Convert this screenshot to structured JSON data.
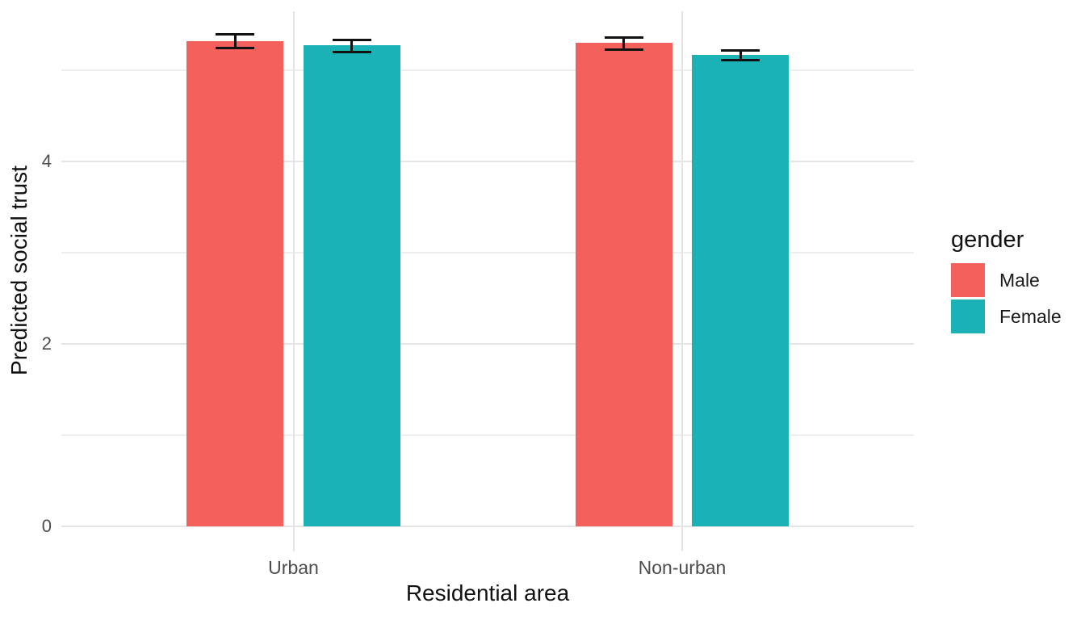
{
  "chart_data": {
    "type": "bar",
    "title": "",
    "xlabel": "Residential area",
    "ylabel": "Predicted social trust",
    "categories": [
      "Urban",
      "Non-urban"
    ],
    "series": [
      {
        "name": "Male",
        "color": "#F4605C",
        "values": [
          5.32,
          5.3
        ],
        "err_low": [
          5.24,
          5.23
        ],
        "err_high": [
          5.39,
          5.36
        ]
      },
      {
        "name": "Female",
        "color": "#1AB2B5",
        "values": [
          5.27,
          5.17
        ],
        "err_low": [
          5.2,
          5.11
        ],
        "err_high": [
          5.33,
          5.22
        ]
      }
    ],
    "error_bars": true,
    "y_ticks": [
      0,
      2,
      4
    ],
    "y_minor_gridlines": [
      1,
      3,
      5
    ],
    "ylim": [
      -0.27,
      5.65
    ],
    "grid": "horizontal major+minor, vertical at category centers",
    "legend": {
      "title": "gender",
      "position": "right"
    },
    "colors": {
      "grid_major": "#E5E5E5",
      "grid_minor": "#EFEFEF",
      "tick_text": "#4D4D4D",
      "title_text": "#111111",
      "error_bar": "#111111",
      "background": "#FFFFFF"
    }
  }
}
